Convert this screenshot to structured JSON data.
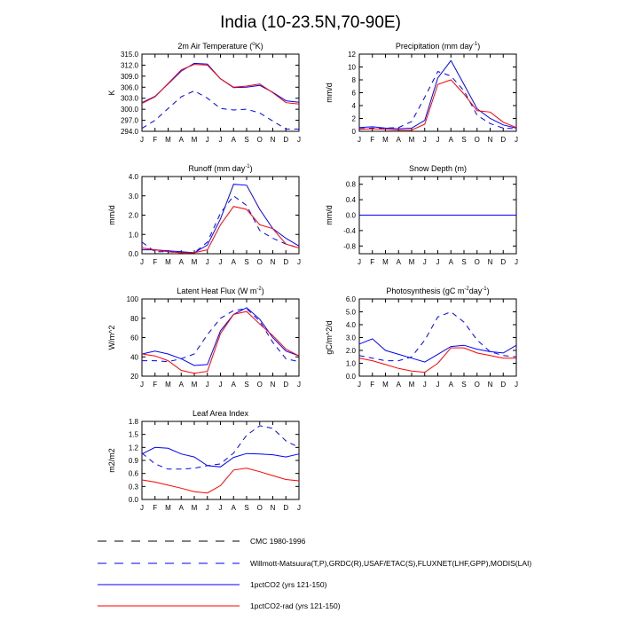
{
  "figure": {
    "title": "India (10-23.5N,70-90E)"
  },
  "months": [
    "J",
    "F",
    "M",
    "A",
    "M",
    "J",
    "J",
    "A",
    "S",
    "O",
    "N",
    "D",
    "J"
  ],
  "legend": [
    {
      "label": "CMC 1980-1996",
      "color": "#000000",
      "dash": "long"
    },
    {
      "label": "Willmott-Matsuura(T,P),GRDC(R),USAF/ETAC(S),FLUXNET(LHF,GPP),MODIS(LAI)",
      "color": "#0000ff",
      "dash": "long"
    },
    {
      "label": "1pctCO2 (yrs 121-150)",
      "color": "#0000ff",
      "dash": "solid"
    },
    {
      "label": "1pctCO2-rad (yrs 121-150)",
      "color": "#ff0000",
      "dash": "solid"
    }
  ],
  "chart_data": [
    {
      "type": "line",
      "title": "2m Air Temperature (°K)",
      "title_parts": [
        "2m Air Temperature (",
        "o",
        "K)"
      ],
      "xlabel": "",
      "ylabel": "K",
      "ylim": [
        294.0,
        315.0
      ],
      "yticks": [
        "294.0",
        "297.0",
        "300.0",
        "303.0",
        "306.0",
        "309.0",
        "312.0",
        "315.0"
      ],
      "series": [
        {
          "name": "Willmott-Matsuura(T,P),GRDC(R),USAF/ETAC(S),FLUXNET(LHF,GPP),MODIS(LAI)",
          "color": "#0000ff",
          "dash": "long",
          "values": [
            294.8,
            297.0,
            300.2,
            303.4,
            305.0,
            303.0,
            300.2,
            299.8,
            300.0,
            299.0,
            296.8,
            294.6,
            294.6
          ]
        },
        {
          "name": "1pctCO2 (yrs 121-150)",
          "color": "#0000ff",
          "dash": "solid",
          "values": [
            301.8,
            303.5,
            306.9,
            310.4,
            312.5,
            312.3,
            308.3,
            305.9,
            306.0,
            306.5,
            304.6,
            302.3,
            301.9
          ]
        },
        {
          "name": "1pctCO2-rad (yrs 121-150)",
          "color": "#ff0000",
          "dash": "solid",
          "values": [
            301.6,
            303.4,
            307.0,
            310.7,
            312.2,
            312.0,
            308.3,
            306.0,
            306.3,
            306.9,
            304.5,
            301.8,
            301.4
          ]
        }
      ]
    },
    {
      "type": "line",
      "title": "Precipitation (mm day-1)",
      "title_parts": [
        "Precipitation (mm day",
        "-1",
        ")"
      ],
      "xlabel": "",
      "ylabel": "mm/d",
      "ylim": [
        0,
        12
      ],
      "yticks": [
        "0",
        "2",
        "4",
        "6",
        "8",
        "10",
        "12"
      ],
      "series": [
        {
          "name": "Willmott-Matsuura(T,P),GRDC(R),USAF/ETAC(S),FLUXNET(LHF,GPP),MODIS(LAI)",
          "color": "#0000ff",
          "dash": "long",
          "values": [
            0.4,
            0.5,
            0.5,
            0.6,
            1.5,
            5.3,
            9.3,
            8.6,
            6.3,
            2.5,
            1.2,
            0.5,
            0.4
          ]
        },
        {
          "name": "1pctCO2 (yrs 121-150)",
          "color": "#0000ff",
          "dash": "solid",
          "values": [
            0.6,
            0.7,
            0.5,
            0.4,
            0.5,
            1.7,
            8.3,
            11.0,
            7.3,
            3.5,
            2.0,
            1.0,
            0.5
          ]
        },
        {
          "name": "1pctCO2-rad (yrs 121-150)",
          "color": "#ff0000",
          "dash": "solid",
          "values": [
            0.3,
            0.4,
            0.3,
            0.2,
            0.2,
            1.1,
            7.3,
            8.0,
            5.8,
            3.2,
            3.0,
            1.4,
            0.6
          ]
        }
      ]
    },
    {
      "type": "line",
      "title": "Runoff (mm day-1)",
      "title_parts": [
        "Runoff (mm day",
        "-1",
        ")"
      ],
      "xlabel": "",
      "ylabel": "mm/d",
      "ylim": [
        0.0,
        4.0
      ],
      "yticks": [
        "0.0",
        "1.0",
        "2.0",
        "3.0",
        "4.0"
      ],
      "series": [
        {
          "name": "Willmott-Matsuura(T,P),GRDC(R),USAF/ETAC(S),FLUXNET(LHF,GPP),MODIS(LAI)",
          "color": "#0000ff",
          "dash": "long",
          "values": [
            0.6,
            0.1,
            0.1,
            0.05,
            0.05,
            0.6,
            2.1,
            3.0,
            2.5,
            1.2,
            0.8,
            0.5,
            0.3
          ]
        },
        {
          "name": "1pctCO2 (yrs 121-150)",
          "color": "#0000ff",
          "dash": "solid",
          "values": [
            0.2,
            0.2,
            0.15,
            0.1,
            0.05,
            0.45,
            1.8,
            3.6,
            3.55,
            2.3,
            1.3,
            0.8,
            0.4
          ]
        },
        {
          "name": "1pctCO2-rad (yrs 121-150)",
          "color": "#ff0000",
          "dash": "solid",
          "values": [
            0.3,
            0.2,
            0.1,
            0.05,
            0.05,
            0.2,
            1.5,
            2.45,
            2.3,
            1.5,
            1.3,
            0.5,
            0.3
          ]
        }
      ]
    },
    {
      "type": "line",
      "title": "Snow Depth (m)",
      "title_parts": [
        "Snow Depth (m)"
      ],
      "xlabel": "",
      "ylabel": "mm/d",
      "ylim": [
        -1.0,
        1.0
      ],
      "yticks": [
        "-0.8",
        "-0.4",
        "0.0",
        "0.4",
        "0.8"
      ],
      "series": [
        {
          "name": "CMC 1980-1996",
          "color": "#000000",
          "dash": "long",
          "values": [
            0,
            0,
            0,
            0,
            0,
            0,
            0,
            0,
            0,
            0,
            0,
            0,
            0
          ]
        },
        {
          "name": "1pctCO2-rad (yrs 121-150)",
          "color": "#ff0000",
          "dash": "solid",
          "values": [
            0,
            0,
            0,
            0,
            0,
            0,
            0,
            0,
            0,
            0,
            0,
            0,
            0
          ]
        },
        {
          "name": "1pctCO2 (yrs 121-150)",
          "color": "#0000ff",
          "dash": "solid",
          "values": [
            0,
            0,
            0,
            0,
            0,
            0,
            0,
            0,
            0,
            0,
            0,
            0,
            0
          ]
        }
      ]
    },
    {
      "type": "line",
      "title": "Latent Heat Flux (W m-2)",
      "title_parts": [
        "Latent Heat Flux (W m",
        "-2",
        ")"
      ],
      "xlabel": "",
      "ylabel": "W/m^2",
      "ylim": [
        20,
        100
      ],
      "yticks": [
        "20",
        "40",
        "60",
        "80",
        "100"
      ],
      "series": [
        {
          "name": "Willmott-Matsuura(T,P),GRDC(R),USAF/ETAC(S),FLUXNET(LHF,GPP),MODIS(LAI)",
          "color": "#0000ff",
          "dash": "long",
          "values": [
            36,
            36,
            35,
            38,
            43,
            63,
            80,
            88,
            90,
            77,
            55,
            38,
            35
          ]
        },
        {
          "name": "1pctCO2 (yrs 121-150)",
          "color": "#0000ff",
          "dash": "solid",
          "values": [
            43,
            46,
            43,
            38,
            31,
            32,
            67,
            84,
            91,
            79,
            60,
            46,
            41
          ]
        },
        {
          "name": "1pctCO2-rad (yrs 121-150)",
          "color": "#ff0000",
          "dash": "solid",
          "values": [
            43,
            41,
            36,
            26,
            23,
            25,
            64,
            84,
            87,
            74,
            62,
            48,
            41
          ]
        }
      ]
    },
    {
      "type": "line",
      "title": "Photosynthesis (gC m-2day-1)",
      "title_parts": [
        "Photosynthesis (gC m",
        "-2",
        "day",
        "-1",
        ")"
      ],
      "xlabel": "",
      "ylabel": "gC/m^2/d",
      "ylim": [
        0.0,
        6.0
      ],
      "yticks": [
        "0.0",
        "1.0",
        "2.0",
        "3.0",
        "4.0",
        "5.0",
        "6.0"
      ],
      "series": [
        {
          "name": "Willmott-Matsuura(T,P),GRDC(R),USAF/ETAC(S),FLUXNET(LHF,GPP),MODIS(LAI)",
          "color": "#0000ff",
          "dash": "long",
          "values": [
            1.6,
            1.4,
            1.2,
            1.2,
            1.5,
            2.8,
            4.6,
            5.0,
            4.2,
            2.8,
            1.9,
            1.6,
            1.5
          ]
        },
        {
          "name": "1pctCO2 (yrs 121-150)",
          "color": "#0000ff",
          "dash": "solid",
          "values": [
            2.5,
            2.9,
            2.0,
            1.7,
            1.4,
            1.1,
            1.7,
            2.3,
            2.4,
            2.1,
            1.9,
            1.8,
            2.4
          ]
        },
        {
          "name": "1pctCO2-rad (yrs 121-150)",
          "color": "#ff0000",
          "dash": "solid",
          "values": [
            1.4,
            1.2,
            0.9,
            0.6,
            0.4,
            0.3,
            1.0,
            2.2,
            2.2,
            1.8,
            1.6,
            1.4,
            1.4
          ]
        }
      ]
    },
    {
      "type": "line",
      "title": "Leaf Area Index",
      "title_parts": [
        "Leaf Area Index"
      ],
      "xlabel": "",
      "ylabel": "m2/m2",
      "ylim": [
        0.0,
        1.8
      ],
      "yticks": [
        "0.0",
        "0.3",
        "0.6",
        "0.9",
        "1.2",
        "1.5",
        "1.8"
      ],
      "series": [
        {
          "name": "Willmott-Matsuura(T,P),GRDC(R),USAF/ETAC(S),FLUXNET(LHF,GPP),MODIS(LAI)",
          "color": "#0000ff",
          "dash": "long",
          "values": [
            1.07,
            0.82,
            0.7,
            0.7,
            0.72,
            0.78,
            0.82,
            1.07,
            1.48,
            1.7,
            1.64,
            1.35,
            1.2
          ]
        },
        {
          "name": "1pctCO2 (yrs 121-150)",
          "color": "#0000ff",
          "dash": "solid",
          "values": [
            1.05,
            1.2,
            1.18,
            1.05,
            0.98,
            0.78,
            0.75,
            0.97,
            1.06,
            1.05,
            1.03,
            0.98,
            1.05
          ]
        },
        {
          "name": "1pctCO2-rad (yrs 121-150)",
          "color": "#ff0000",
          "dash": "solid",
          "values": [
            0.45,
            0.4,
            0.33,
            0.26,
            0.18,
            0.15,
            0.32,
            0.68,
            0.72,
            0.64,
            0.55,
            0.46,
            0.43
          ]
        }
      ]
    }
  ]
}
